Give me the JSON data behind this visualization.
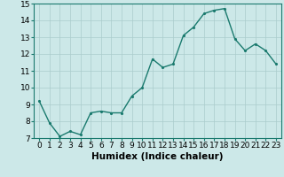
{
  "x": [
    0,
    1,
    2,
    3,
    4,
    5,
    6,
    7,
    8,
    9,
    10,
    11,
    12,
    13,
    14,
    15,
    16,
    17,
    18,
    19,
    20,
    21,
    22,
    23
  ],
  "y": [
    9.2,
    7.9,
    7.1,
    7.4,
    7.2,
    8.5,
    8.6,
    8.5,
    8.5,
    9.5,
    10.0,
    11.7,
    11.2,
    11.4,
    13.1,
    13.6,
    14.4,
    14.6,
    14.7,
    12.9,
    12.2,
    12.6,
    12.2,
    11.4
  ],
  "line_color": "#1a7a6e",
  "marker_color": "#1a7a6e",
  "bg_color": "#cce8e8",
  "grid_color": "#aacccc",
  "xlabel": "Humidex (Indice chaleur)",
  "ylabel": "",
  "xlim": [
    -0.5,
    23.5
  ],
  "ylim": [
    7,
    15
  ],
  "yticks": [
    7,
    8,
    9,
    10,
    11,
    12,
    13,
    14,
    15
  ],
  "xticks": [
    0,
    1,
    2,
    3,
    4,
    5,
    6,
    7,
    8,
    9,
    10,
    11,
    12,
    13,
    14,
    15,
    16,
    17,
    18,
    19,
    20,
    21,
    22,
    23
  ],
  "xlabel_fontsize": 7.5,
  "tick_fontsize": 6.5,
  "line_width": 1.0,
  "marker_size": 2.5
}
